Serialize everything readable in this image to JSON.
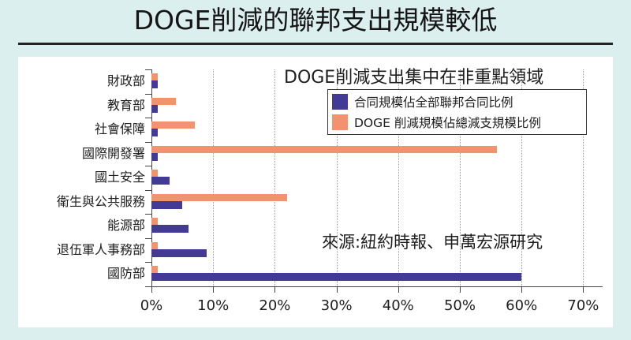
{
  "title": "DOGE削減的聯邦支出規模較低",
  "subtitle": "DOGE削減支出集中在非重點領域",
  "source": "來源:紐約時報、申萬宏源研究",
  "colors": {
    "contract_share": "#433a96",
    "doge_share": "#f0936e",
    "background": "#dcefef",
    "panel": "#ffffff"
  },
  "legend": [
    {
      "label": "合同規模佔全部聯邦合同比例",
      "color": "#433a96"
    },
    {
      "label": "DOGE 削減規模佔總減支規模比例",
      "color": "#f0936e"
    }
  ],
  "x_ticks": [
    "0%",
    "10%",
    "20%",
    "30%",
    "40%",
    "50%",
    "60%",
    "70%"
  ],
  "chart_data": {
    "type": "bar",
    "orientation": "horizontal",
    "title": "DOGE削減的聯邦支出規模較低",
    "subtitle": "DOGE削減支出集中在非重點領域",
    "categories": [
      "財政部",
      "教育部",
      "社會保障",
      "國際開發署",
      "國土安全",
      "衛生與公共服務",
      "能源部",
      "退伍軍人事務部",
      "國防部"
    ],
    "series": [
      {
        "name": "合同規模佔全部聯邦合同比例",
        "color": "#433a96",
        "values": [
          1,
          1,
          1,
          1,
          3,
          5,
          6,
          9,
          60
        ]
      },
      {
        "name": "DOGE 削減規模佔總減支規模比例",
        "color": "#f0936e",
        "values": [
          1,
          4,
          7,
          56,
          1,
          22,
          1,
          1,
          1
        ]
      }
    ],
    "xlabel": "",
    "ylabel": "",
    "xlim": [
      0,
      70
    ],
    "x_ticks": [
      "0%",
      "10%",
      "20%",
      "30%",
      "40%",
      "50%",
      "60%",
      "70%"
    ],
    "grid": "vertical dotted",
    "legend_position": "upper right",
    "annotation": "來源:紐約時報、申萬宏源研究"
  }
}
